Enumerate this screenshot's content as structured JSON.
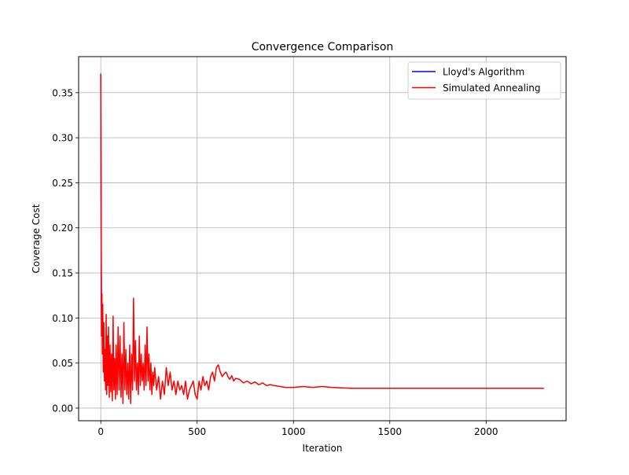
{
  "chart_data": {
    "type": "line",
    "title": "Convergence Comparison",
    "xlabel": "Iteration",
    "ylabel": "Coverage Cost",
    "xlim": [
      -115,
      2415
    ],
    "ylim": [
      -0.014,
      0.39
    ],
    "xticks": [
      0,
      500,
      1000,
      1500,
      2000
    ],
    "xtick_labels": [
      "0",
      "500",
      "1000",
      "1500",
      "2000"
    ],
    "yticks": [
      0.0,
      0.05,
      0.1,
      0.15,
      0.2,
      0.25,
      0.3,
      0.35
    ],
    "ytick_labels": [
      "0.00",
      "0.05",
      "0.10",
      "0.15",
      "0.20",
      "0.25",
      "0.30",
      "0.35"
    ],
    "grid": true,
    "legend_position": "upper right",
    "series": [
      {
        "name": "Lloyd's Algorithm",
        "color": "#0000ff",
        "x": [
          0,
          1,
          2,
          3,
          5,
          8,
          12,
          16,
          20,
          25,
          30,
          40,
          50,
          60,
          80
        ],
        "y": [
          0.371,
          0.3,
          0.2,
          0.12,
          0.085,
          0.095,
          0.07,
          0.06,
          0.05,
          0.045,
          0.04,
          0.035,
          0.032,
          0.03,
          0.028
        ]
      },
      {
        "name": "Simulated Annealing",
        "color": "#ff0000",
        "x": [
          0,
          2,
          4,
          6,
          8,
          10,
          13,
          16,
          19,
          22,
          25,
          28,
          31,
          34,
          37,
          40,
          44,
          48,
          52,
          56,
          60,
          64,
          68,
          72,
          76,
          80,
          85,
          90,
          95,
          100,
          105,
          110,
          115,
          120,
          125,
          130,
          135,
          140,
          145,
          150,
          155,
          160,
          165,
          170,
          175,
          180,
          185,
          190,
          195,
          200,
          205,
          210,
          215,
          220,
          225,
          230,
          235,
          240,
          245,
          250,
          255,
          260,
          265,
          270,
          275,
          280,
          290,
          300,
          310,
          320,
          330,
          340,
          350,
          360,
          370,
          380,
          390,
          400,
          410,
          420,
          430,
          440,
          450,
          460,
          470,
          480,
          490,
          500,
          510,
          520,
          530,
          540,
          550,
          560,
          570,
          580,
          590,
          600,
          610,
          620,
          630,
          640,
          650,
          660,
          670,
          680,
          690,
          700,
          720,
          740,
          760,
          780,
          800,
          820,
          840,
          860,
          880,
          900,
          930,
          960,
          1000,
          1050,
          1100,
          1150,
          1200,
          1300,
          1400,
          1500,
          1600,
          1800,
          2000,
          2200,
          2300
        ],
        "y": [
          0.371,
          0.2,
          0.08,
          0.127,
          0.06,
          0.115,
          0.04,
          0.095,
          0.03,
          0.065,
          0.02,
          0.104,
          0.015,
          0.08,
          0.025,
          0.09,
          0.012,
          0.07,
          0.018,
          0.06,
          0.008,
          0.102,
          0.02,
          0.055,
          0.01,
          0.07,
          0.015,
          0.09,
          0.02,
          0.08,
          0.012,
          0.06,
          0.005,
          0.095,
          0.02,
          0.065,
          0.015,
          0.05,
          0.01,
          0.07,
          0.005,
          0.06,
          0.02,
          0.122,
          0.03,
          0.075,
          0.02,
          0.05,
          0.015,
          0.08,
          0.025,
          0.06,
          0.03,
          0.05,
          0.02,
          0.07,
          0.025,
          0.09,
          0.03,
          0.06,
          0.02,
          0.05,
          0.015,
          0.04,
          0.025,
          0.045,
          0.02,
          0.035,
          0.01,
          0.03,
          0.015,
          0.045,
          0.025,
          0.04,
          0.02,
          0.03,
          0.015,
          0.03,
          0.02,
          0.025,
          0.015,
          0.03,
          0.01,
          0.02,
          0.025,
          0.03,
          0.015,
          0.01,
          0.03,
          0.02,
          0.035,
          0.025,
          0.03,
          0.02,
          0.035,
          0.04,
          0.03,
          0.045,
          0.048,
          0.04,
          0.035,
          0.038,
          0.04,
          0.035,
          0.032,
          0.036,
          0.03,
          0.033,
          0.032,
          0.028,
          0.03,
          0.027,
          0.029,
          0.026,
          0.028,
          0.025,
          0.026,
          0.025,
          0.024,
          0.023,
          0.023,
          0.024,
          0.023,
          0.024,
          0.023,
          0.022,
          0.022,
          0.022,
          0.022,
          0.022,
          0.022,
          0.022,
          0.022
        ]
      }
    ]
  }
}
